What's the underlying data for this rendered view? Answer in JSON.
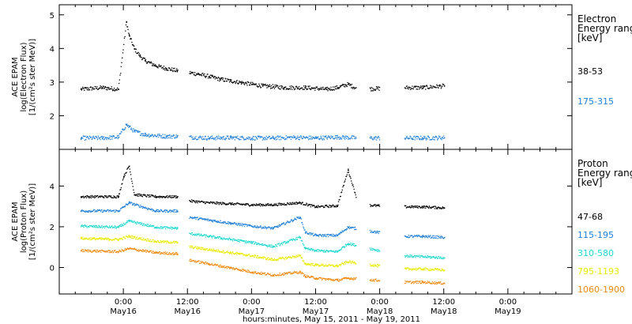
{
  "chart_data": [
    {
      "type": "scatter",
      "panel": "electron",
      "ylabel_lines": [
        "ACE EPAM",
        "log(Electron Flux)",
        "[1/(cm²s ster MeV)]"
      ],
      "ylim": [
        1.0,
        5.3
      ],
      "yticks": [
        2,
        3,
        4,
        5
      ],
      "legend_title_lines": [
        "Electron",
        "Energy ranges",
        "[keV]"
      ],
      "series": [
        {
          "name": "38-53",
          "color": "#000000",
          "points": [
            [
              -8,
              2.8
            ],
            [
              -4,
              2.85
            ],
            [
              -1,
              2.8
            ],
            [
              0.5,
              4.8
            ],
            [
              1,
              4.4
            ],
            [
              2,
              4.0
            ],
            [
              3,
              3.8
            ],
            [
              4,
              3.65
            ],
            [
              6,
              3.5
            ],
            [
              8,
              3.42
            ],
            [
              10,
              3.35
            ],
            [
              12,
              3.3
            ],
            [
              14,
              3.25
            ],
            [
              16,
              3.18
            ],
            [
              18,
              3.1
            ],
            [
              20,
              3.05
            ],
            [
              22,
              3.0
            ],
            [
              24,
              2.95
            ],
            [
              26,
              2.9
            ],
            [
              28,
              2.88
            ],
            [
              30,
              2.85
            ],
            [
              34,
              2.85
            ],
            [
              38,
              2.8
            ],
            [
              40,
              2.85
            ],
            [
              42,
              2.95
            ],
            [
              44,
              2.8
            ],
            [
              52,
              2.85
            ],
            [
              56,
              2.85
            ],
            [
              60,
              2.9
            ]
          ]
        },
        {
          "name": "175-315",
          "color": "#1f7fd8",
          "points": [
            [
              -8,
              1.35
            ],
            [
              -4,
              1.35
            ],
            [
              -1,
              1.38
            ],
            [
              0.5,
              1.75
            ],
            [
              2,
              1.55
            ],
            [
              4,
              1.45
            ],
            [
              8,
              1.4
            ],
            [
              10,
              1.4
            ],
            [
              12,
              1.38
            ],
            [
              16,
              1.35
            ],
            [
              20,
              1.36
            ],
            [
              24,
              1.35
            ],
            [
              28,
              1.35
            ],
            [
              32,
              1.37
            ],
            [
              36,
              1.35
            ],
            [
              40,
              1.38
            ],
            [
              44,
              1.35
            ],
            [
              52,
              1.35
            ],
            [
              56,
              1.35
            ],
            [
              60,
              1.36
            ]
          ]
        }
      ]
    },
    {
      "type": "scatter",
      "panel": "proton",
      "ylabel_lines": [
        "ACE EPAM",
        "log(Proton Flux)",
        "[1/(cm²s ster MeV)]"
      ],
      "ylim": [
        -1.3,
        5.8
      ],
      "yticks": [
        0,
        2,
        4
      ],
      "legend_title_lines": [
        "Proton",
        "Energy ranges",
        "[keV]"
      ],
      "series": [
        {
          "name": "47-68",
          "color": "#000000",
          "points": [
            [
              -8,
              3.5
            ],
            [
              -1,
              3.5
            ],
            [
              0,
              4.5
            ],
            [
              1,
              5.0
            ],
            [
              2,
              3.6
            ],
            [
              6,
              3.5
            ],
            [
              10,
              3.5
            ],
            [
              12,
              3.3
            ],
            [
              16,
              3.2
            ],
            [
              20,
              3.15
            ],
            [
              24,
              3.1
            ],
            [
              28,
              3.1
            ],
            [
              33,
              3.2
            ],
            [
              36,
              3.0
            ],
            [
              40,
              3.05
            ],
            [
              42,
              4.8
            ],
            [
              44,
              3.1
            ],
            [
              52,
              3.0
            ],
            [
              56,
              3.0
            ],
            [
              60,
              2.95
            ]
          ]
        },
        {
          "name": "115-195",
          "color": "#1f7fd8",
          "points": [
            [
              -8,
              2.8
            ],
            [
              -1,
              2.8
            ],
            [
              1,
              3.2
            ],
            [
              6,
              2.8
            ],
            [
              10,
              2.8
            ],
            [
              12,
              2.5
            ],
            [
              16,
              2.35
            ],
            [
              20,
              2.2
            ],
            [
              24,
              2.05
            ],
            [
              28,
              1.95
            ],
            [
              33,
              2.5
            ],
            [
              34,
              1.75
            ],
            [
              36,
              1.6
            ],
            [
              40,
              1.6
            ],
            [
              42,
              2.0
            ],
            [
              52,
              1.55
            ],
            [
              56,
              1.55
            ],
            [
              60,
              1.5
            ]
          ]
        },
        {
          "name": "310-580",
          "color": "#20d8d0",
          "points": [
            [
              -8,
              2.05
            ],
            [
              -1,
              2.0
            ],
            [
              1,
              2.3
            ],
            [
              6,
              2.0
            ],
            [
              10,
              1.95
            ],
            [
              12,
              1.7
            ],
            [
              16,
              1.55
            ],
            [
              20,
              1.4
            ],
            [
              24,
              1.25
            ],
            [
              28,
              1.05
            ],
            [
              33,
              1.5
            ],
            [
              34,
              0.95
            ],
            [
              36,
              0.85
            ],
            [
              40,
              0.8
            ],
            [
              42,
              1.2
            ],
            [
              52,
              0.6
            ],
            [
              56,
              0.55
            ],
            [
              60,
              0.5
            ]
          ]
        },
        {
          "name": "795-1193",
          "color": "#e8ec00",
          "points": [
            [
              -8,
              1.45
            ],
            [
              -1,
              1.4
            ],
            [
              1,
              1.55
            ],
            [
              6,
              1.3
            ],
            [
              10,
              1.25
            ],
            [
              12,
              1.05
            ],
            [
              16,
              0.9
            ],
            [
              20,
              0.75
            ],
            [
              24,
              0.6
            ],
            [
              28,
              0.4
            ],
            [
              33,
              0.6
            ],
            [
              34,
              0.2
            ],
            [
              36,
              0.15
            ],
            [
              40,
              0.1
            ],
            [
              42,
              0.3
            ],
            [
              52,
              -0.05
            ],
            [
              56,
              -0.05
            ],
            [
              60,
              -0.1
            ]
          ]
        },
        {
          "name": "1060-1900",
          "color": "#f08a10",
          "points": [
            [
              -8,
              0.85
            ],
            [
              -1,
              0.8
            ],
            [
              1,
              0.95
            ],
            [
              6,
              0.75
            ],
            [
              10,
              0.7
            ],
            [
              12,
              0.4
            ],
            [
              16,
              0.2
            ],
            [
              20,
              0.0
            ],
            [
              24,
              -0.2
            ],
            [
              28,
              -0.35
            ],
            [
              33,
              -0.2
            ],
            [
              34,
              -0.4
            ],
            [
              36,
              -0.5
            ],
            [
              40,
              -0.6
            ],
            [
              42,
              -0.5
            ],
            [
              52,
              -0.7
            ],
            [
              56,
              -0.7
            ],
            [
              60,
              -0.75
            ]
          ]
        }
      ]
    }
  ],
  "time_axis": {
    "xlim": [
      -12,
      84
    ],
    "data_gaps": [
      [
        10.2,
        12.2
      ],
      [
        43.6,
        46
      ],
      [
        48,
        52.5
      ],
      [
        63,
        84
      ]
    ],
    "ticks": [
      {
        "x": 0,
        "time": "0:00",
        "date": "May16"
      },
      {
        "x": 12,
        "time": "12:00",
        "date": "May16"
      },
      {
        "x": 24,
        "time": "0:00",
        "date": "May17"
      },
      {
        "x": 36,
        "time": "12:00",
        "date": "May17"
      },
      {
        "x": 48,
        "time": "0:00",
        "date": "May18"
      },
      {
        "x": 60,
        "time": "12:00",
        "date": "May18"
      },
      {
        "x": 72,
        "time": "0:00",
        "date": "May19"
      }
    ],
    "xlabel": "hours:minutes, May 15, 2011 - May 19, 2011"
  }
}
